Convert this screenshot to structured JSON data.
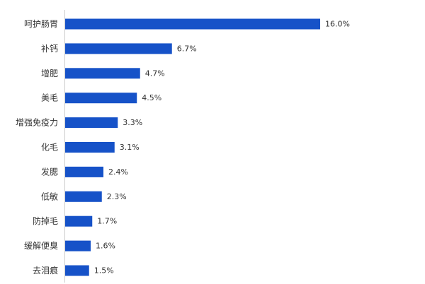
{
  "chart_data": {
    "type": "bar",
    "orientation": "horizontal",
    "categories": [
      "呵护肠胃",
      "补钙",
      "增肥",
      "美毛",
      "增强免疫力",
      "化毛",
      "发腮",
      "低敏",
      "防掉毛",
      "缓解便臭",
      "去泪痕"
    ],
    "values": [
      16.0,
      6.7,
      4.7,
      4.5,
      3.3,
      3.1,
      2.4,
      2.3,
      1.7,
      1.6,
      1.5
    ],
    "value_labels": [
      "16.0%",
      "6.7%",
      "4.7%",
      "4.5%",
      "3.3%",
      "3.1%",
      "2.4%",
      "2.3%",
      "1.7%",
      "1.6%",
      "1.5%"
    ],
    "unit": "%",
    "xlim": [
      0,
      16.0
    ],
    "grid": false,
    "legend": "none",
    "colors": {
      "bar": "#1652c8",
      "axis": "#cccccc",
      "text": "#333333"
    }
  }
}
